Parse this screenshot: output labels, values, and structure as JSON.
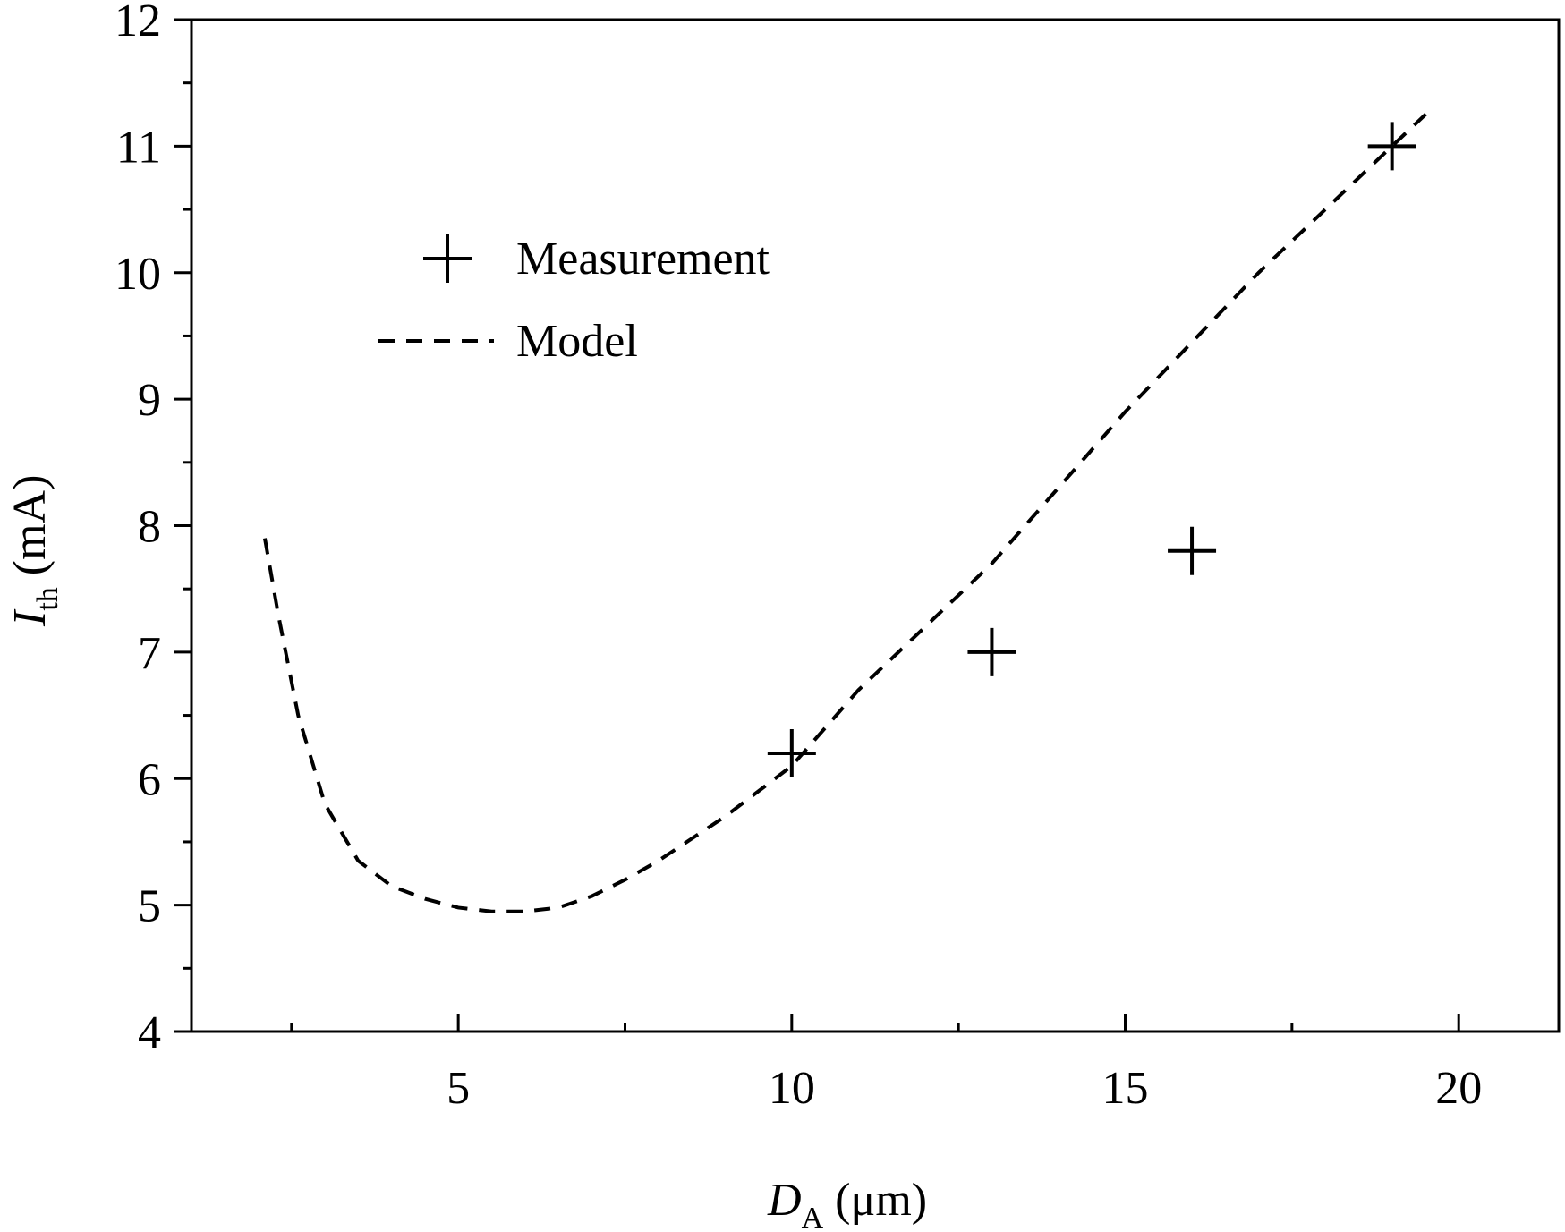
{
  "chart_data": {
    "type": "scatter",
    "xlabel": {
      "main": "D",
      "sub": "A",
      "unit": " (μm)"
    },
    "ylabel": {
      "main": "I",
      "sub": "th",
      "unit": " (mA)"
    },
    "xlim": [
      1,
      21.5
    ],
    "ylim": [
      4,
      12
    ],
    "xticks": [
      5,
      10,
      15,
      20
    ],
    "xminor": [
      2.5,
      7.5,
      12.5,
      17.5
    ],
    "yticks": [
      4,
      5,
      6,
      7,
      8,
      9,
      10,
      11,
      12
    ],
    "yminor": [
      4.5,
      5.5,
      6.5,
      7.5,
      8.5,
      9.5,
      10.5,
      11.5
    ],
    "grid": false,
    "legend_position": "upper-left",
    "series": [
      {
        "name": "Measurement",
        "kind": "scatter",
        "marker": "+",
        "color": "#000000",
        "x": [
          10,
          13,
          16,
          19
        ],
        "y": [
          6.2,
          7.0,
          7.8,
          11.0
        ]
      },
      {
        "name": "Model",
        "kind": "line",
        "dash": "dashed",
        "color": "#000000",
        "x": [
          2.1,
          2.3,
          2.6,
          3.0,
          3.5,
          4.0,
          4.5,
          5.0,
          5.5,
          6.0,
          6.5,
          7.0,
          7.5,
          8.0,
          9.0,
          10.0,
          11.0,
          12.0,
          13.0,
          14.0,
          15.0,
          16.0,
          17.0,
          18.0,
          19.0,
          19.6
        ],
        "y": [
          7.9,
          7.3,
          6.5,
          5.8,
          5.35,
          5.15,
          5.05,
          4.98,
          4.95,
          4.95,
          4.98,
          5.07,
          5.2,
          5.35,
          5.7,
          6.1,
          6.7,
          7.2,
          7.7,
          8.3,
          8.9,
          9.45,
          10.0,
          10.5,
          11.0,
          11.3
        ]
      }
    ]
  }
}
